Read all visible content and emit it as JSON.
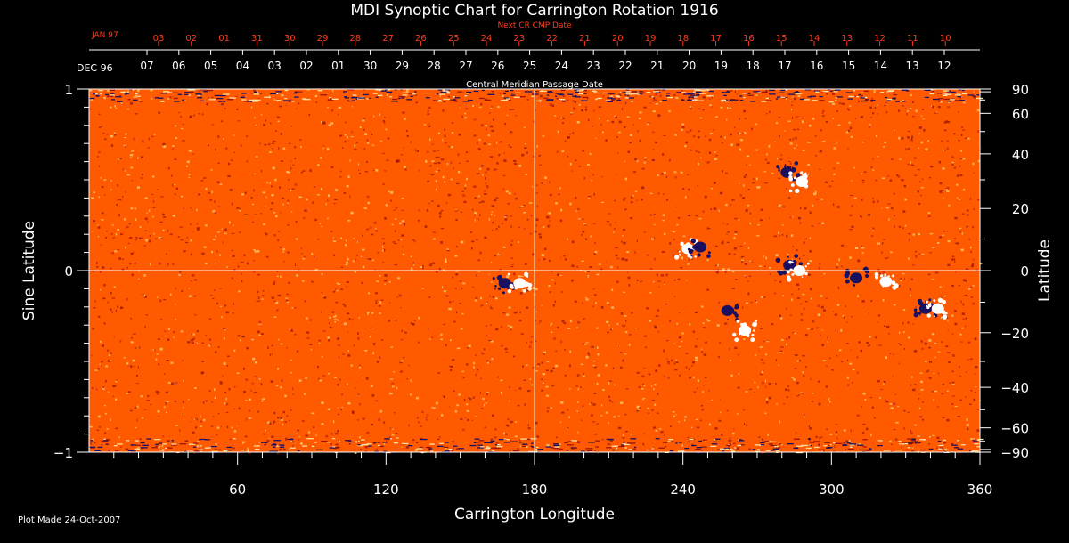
{
  "chart_data": {
    "type": "heatmap",
    "title": "MDI Synoptic Chart for Carrington Rotation 1916",
    "xlabel": "Carrington Longitude",
    "ylabel_left": "Sine Latitude",
    "ylabel_right": "Latitude",
    "xlim": [
      0,
      360
    ],
    "ylim": [
      -1,
      1
    ],
    "x_ticks": [
      60,
      120,
      180,
      240,
      300,
      360
    ],
    "y_ticks_left": [
      {
        "value": 1,
        "label": "1"
      },
      {
        "value": 0,
        "label": "0"
      },
      {
        "value": -1,
        "label": "−1"
      }
    ],
    "y_ticks_right": [
      {
        "deg": 90,
        "label": "90"
      },
      {
        "deg": 60,
        "label": "60"
      },
      {
        "deg": 40,
        "label": "40"
      },
      {
        "deg": 20,
        "label": "20"
      },
      {
        "deg": 0,
        "label": "0"
      },
      {
        "deg": -20,
        "label": "−20"
      },
      {
        "deg": -40,
        "label": "−40"
      },
      {
        "deg": -60,
        "label": "−60"
      },
      {
        "deg": -90,
        "label": "−90"
      }
    ],
    "reference_lines": {
      "longitude": 180,
      "sine_latitude": 0
    },
    "cmp_axis": {
      "label": "Central Meridian Passage Date",
      "start_month_label": "DEC 96",
      "dates": [
        "07",
        "06",
        "05",
        "04",
        "03",
        "02",
        "01",
        "30",
        "29",
        "28",
        "27",
        "26",
        "25",
        "24",
        "23",
        "22",
        "21",
        "20",
        "19",
        "18",
        "17",
        "16",
        "15",
        "14",
        "13",
        "12"
      ]
    },
    "next_cr_axis": {
      "label": "Next CR CMP Date",
      "start_month_label": "JAN 97",
      "dates": [
        "03",
        "02",
        "01",
        "31",
        "30",
        "29",
        "28",
        "27",
        "26",
        "25",
        "24",
        "23",
        "22",
        "21",
        "20",
        "19",
        "18",
        "17",
        "16",
        "15",
        "14",
        "13",
        "12",
        "11",
        "10"
      ]
    },
    "colors": {
      "background": "#ff5a00",
      "speckle_dark": "#9a1508",
      "speckle_light": "#ffd070",
      "negative_polarity": "#1a1060",
      "positive_polarity": "#ffffff",
      "next_cr_axis": "#ff3b1a",
      "axes": "#ffffff"
    },
    "active_regions": [
      {
        "lon": 168,
        "sinlat": -0.07,
        "polarity": "negative"
      },
      {
        "lon": 174,
        "sinlat": -0.07,
        "polarity": "positive"
      },
      {
        "lon": 242,
        "sinlat": 0.12,
        "polarity": "positive"
      },
      {
        "lon": 247,
        "sinlat": 0.13,
        "polarity": "negative"
      },
      {
        "lon": 282,
        "sinlat": 0.54,
        "polarity": "negative"
      },
      {
        "lon": 288,
        "sinlat": 0.49,
        "polarity": "positive"
      },
      {
        "lon": 283,
        "sinlat": 0.03,
        "polarity": "negative"
      },
      {
        "lon": 287,
        "sinlat": 0.0,
        "polarity": "positive"
      },
      {
        "lon": 310,
        "sinlat": -0.04,
        "polarity": "negative"
      },
      {
        "lon": 322,
        "sinlat": -0.06,
        "polarity": "positive"
      },
      {
        "lon": 338,
        "sinlat": -0.21,
        "polarity": "negative"
      },
      {
        "lon": 343,
        "sinlat": -0.21,
        "polarity": "positive"
      },
      {
        "lon": 258,
        "sinlat": -0.22,
        "polarity": "negative"
      },
      {
        "lon": 265,
        "sinlat": -0.33,
        "polarity": "positive"
      }
    ]
  },
  "footer": {
    "plot_made": "Plot Made 24-Oct-2007"
  }
}
